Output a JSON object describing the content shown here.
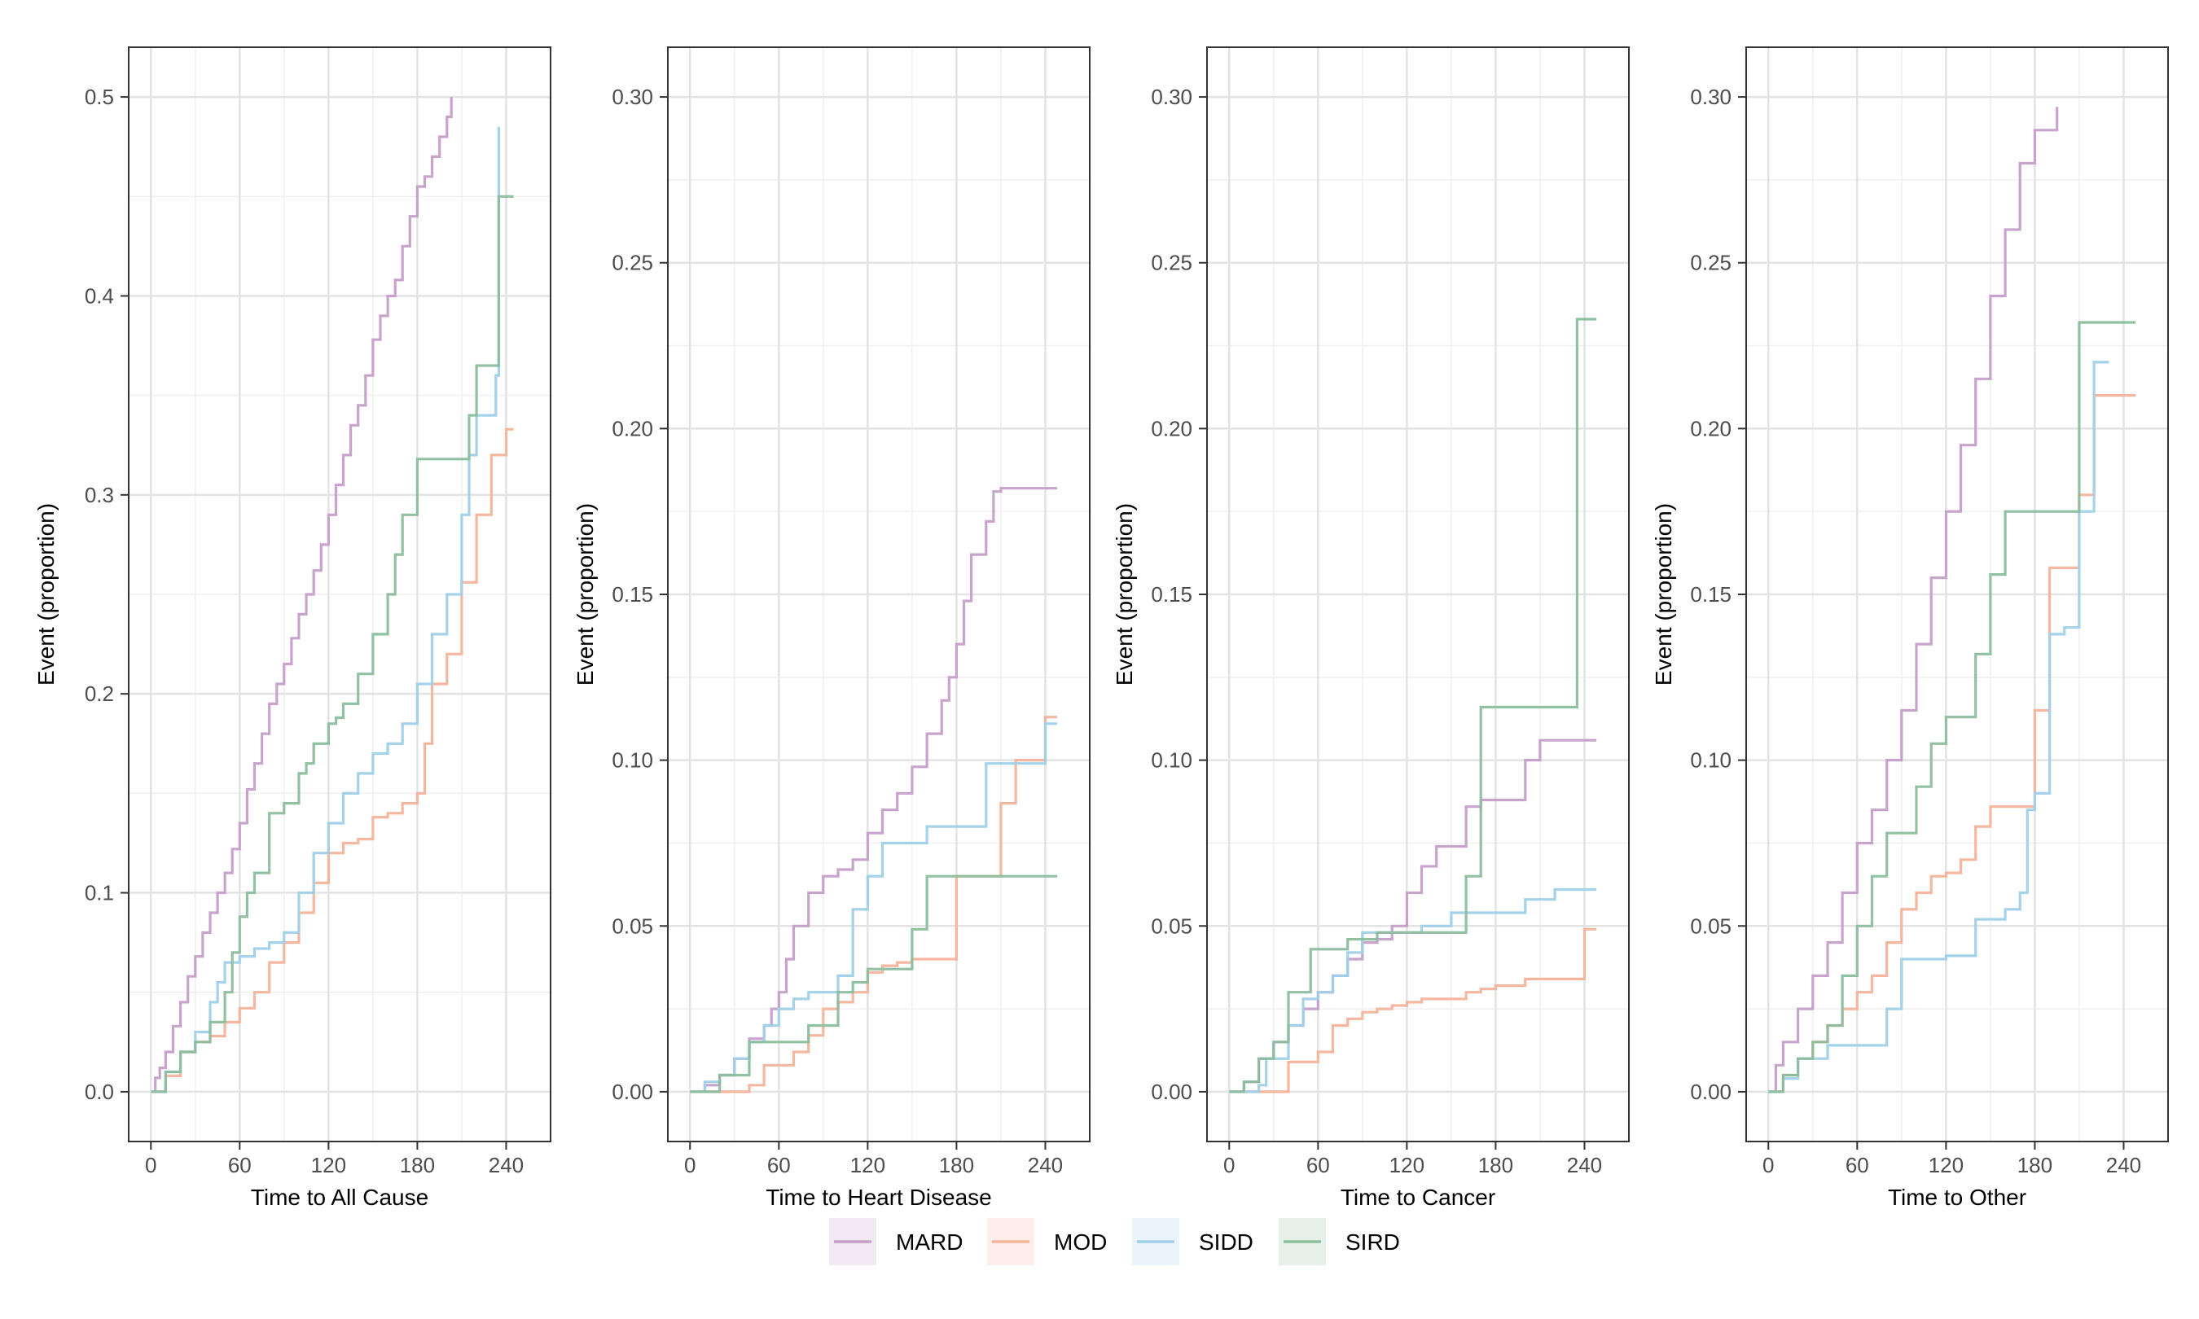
{
  "legend": {
    "items": [
      {
        "name": "MARD",
        "color": "#c59fca"
      },
      {
        "name": "MOD",
        "color": "#f4b39a"
      },
      {
        "name": "SIDD",
        "color": "#9fd0e8"
      },
      {
        "name": "SIRD",
        "color": "#8cbd9d"
      }
    ]
  },
  "chart_data": [
    {
      "type": "line",
      "title": "",
      "xlabel": "Time to All Cause",
      "ylabel": "Event (proportion)",
      "xlim": [
        -15,
        270
      ],
      "ylim": [
        -0.025,
        0.525
      ],
      "xticks": [
        0,
        60,
        120,
        180,
        240
      ],
      "yticks": [
        0.0,
        0.1,
        0.2,
        0.3,
        0.4,
        0.5
      ],
      "ytick_labels": [
        "0.0",
        "0.1",
        "0.2",
        "0.3",
        "0.4",
        "0.5"
      ],
      "series": [
        {
          "name": "MARD",
          "color": "#c59fca",
          "x": [
            0,
            3,
            6,
            10,
            15,
            20,
            25,
            30,
            35,
            40,
            45,
            50,
            55,
            60,
            65,
            70,
            75,
            80,
            85,
            90,
            95,
            100,
            105,
            110,
            115,
            120,
            125,
            130,
            135,
            140,
            145,
            150,
            155,
            160,
            165,
            170,
            175,
            180,
            185,
            190,
            195,
            200,
            203
          ],
          "y": [
            0.0,
            0.007,
            0.012,
            0.02,
            0.033,
            0.045,
            0.058,
            0.068,
            0.08,
            0.09,
            0.1,
            0.11,
            0.122,
            0.135,
            0.152,
            0.165,
            0.18,
            0.195,
            0.205,
            0.215,
            0.228,
            0.24,
            0.25,
            0.262,
            0.275,
            0.29,
            0.305,
            0.32,
            0.335,
            0.345,
            0.36,
            0.378,
            0.39,
            0.4,
            0.408,
            0.425,
            0.44,
            0.455,
            0.46,
            0.47,
            0.48,
            0.49,
            0.5
          ]
        },
        {
          "name": "MOD",
          "color": "#f4b39a",
          "x": [
            0,
            10,
            20,
            30,
            40,
            50,
            60,
            70,
            80,
            90,
            100,
            110,
            120,
            130,
            140,
            150,
            160,
            170,
            180,
            185,
            190,
            200,
            210,
            220,
            230,
            240,
            245
          ],
          "y": [
            0.0,
            0.008,
            0.02,
            0.025,
            0.028,
            0.035,
            0.042,
            0.05,
            0.065,
            0.075,
            0.09,
            0.105,
            0.12,
            0.125,
            0.127,
            0.138,
            0.14,
            0.145,
            0.15,
            0.175,
            0.205,
            0.22,
            0.256,
            0.29,
            0.32,
            0.333,
            0.333
          ]
        },
        {
          "name": "SIDD",
          "color": "#9fd0e8",
          "x": [
            0,
            10,
            20,
            30,
            40,
            45,
            50,
            60,
            70,
            80,
            90,
            100,
            110,
            120,
            130,
            140,
            150,
            160,
            170,
            180,
            190,
            200,
            210,
            215,
            220,
            230,
            233,
            235
          ],
          "y": [
            0.0,
            0.01,
            0.02,
            0.03,
            0.045,
            0.055,
            0.065,
            0.068,
            0.072,
            0.075,
            0.08,
            0.1,
            0.12,
            0.135,
            0.15,
            0.16,
            0.17,
            0.175,
            0.185,
            0.205,
            0.23,
            0.25,
            0.29,
            0.32,
            0.34,
            0.34,
            0.36,
            0.485
          ]
        },
        {
          "name": "SIRD",
          "color": "#8cbd9d",
          "x": [
            0,
            10,
            20,
            30,
            40,
            50,
            55,
            60,
            65,
            70,
            80,
            90,
            100,
            105,
            110,
            120,
            125,
            130,
            140,
            150,
            160,
            165,
            170,
            180,
            190,
            200,
            210,
            215,
            220,
            230,
            235,
            240,
            245
          ],
          "y": [
            0.0,
            0.01,
            0.02,
            0.025,
            0.035,
            0.05,
            0.07,
            0.088,
            0.1,
            0.11,
            0.14,
            0.145,
            0.16,
            0.165,
            0.175,
            0.185,
            0.188,
            0.195,
            0.21,
            0.23,
            0.25,
            0.27,
            0.29,
            0.318,
            0.318,
            0.318,
            0.318,
            0.34,
            0.365,
            0.365,
            0.45,
            0.45,
            0.45
          ]
        }
      ]
    },
    {
      "type": "line",
      "title": "",
      "xlabel": "Time to Heart Disease",
      "ylabel": "Event (proportion)",
      "xlim": [
        -15,
        270
      ],
      "ylim": [
        -0.015,
        0.315
      ],
      "xticks": [
        0,
        60,
        120,
        180,
        240
      ],
      "yticks": [
        0.0,
        0.05,
        0.1,
        0.15,
        0.2,
        0.25,
        0.3
      ],
      "ytick_labels": [
        "0.00",
        "0.05",
        "0.10",
        "0.15",
        "0.20",
        "0.25",
        "0.30"
      ],
      "series": [
        {
          "name": "MARD",
          "color": "#c59fca",
          "x": [
            0,
            10,
            20,
            30,
            40,
            50,
            55,
            60,
            65,
            70,
            80,
            90,
            100,
            110,
            120,
            130,
            140,
            150,
            160,
            170,
            175,
            180,
            185,
            190,
            200,
            205,
            210,
            220,
            230,
            248
          ],
          "y": [
            0.0,
            0.002,
            0.005,
            0.01,
            0.016,
            0.02,
            0.025,
            0.03,
            0.04,
            0.05,
            0.06,
            0.065,
            0.067,
            0.07,
            0.078,
            0.085,
            0.09,
            0.098,
            0.108,
            0.118,
            0.125,
            0.135,
            0.148,
            0.162,
            0.172,
            0.181,
            0.182,
            0.182,
            0.182,
            0.182
          ]
        },
        {
          "name": "MOD",
          "color": "#f4b39a",
          "x": [
            0,
            20,
            40,
            50,
            60,
            70,
            80,
            90,
            100,
            110,
            120,
            130,
            140,
            150,
            160,
            170,
            180,
            190,
            200,
            210,
            220,
            230,
            240,
            248
          ],
          "y": [
            0.0,
            0.0,
            0.002,
            0.008,
            0.008,
            0.012,
            0.017,
            0.025,
            0.027,
            0.03,
            0.036,
            0.038,
            0.039,
            0.04,
            0.04,
            0.04,
            0.065,
            0.065,
            0.065,
            0.087,
            0.1,
            0.1,
            0.113,
            0.113
          ]
        },
        {
          "name": "SIDD",
          "color": "#9fd0e8",
          "x": [
            0,
            10,
            20,
            30,
            40,
            50,
            60,
            70,
            80,
            100,
            110,
            120,
            130,
            150,
            160,
            170,
            180,
            200,
            210,
            220,
            240,
            248
          ],
          "y": [
            0.0,
            0.003,
            0.005,
            0.01,
            0.015,
            0.02,
            0.025,
            0.028,
            0.03,
            0.035,
            0.055,
            0.065,
            0.075,
            0.075,
            0.08,
            0.08,
            0.08,
            0.099,
            0.099,
            0.099,
            0.111,
            0.111
          ]
        },
        {
          "name": "SIRD",
          "color": "#8cbd9d",
          "x": [
            0,
            20,
            40,
            60,
            80,
            100,
            110,
            120,
            130,
            150,
            160,
            180,
            200,
            248
          ],
          "y": [
            0.0,
            0.005,
            0.015,
            0.015,
            0.02,
            0.03,
            0.033,
            0.037,
            0.037,
            0.049,
            0.065,
            0.065,
            0.065,
            0.065
          ]
        }
      ]
    },
    {
      "type": "line",
      "title": "",
      "xlabel": "Time to Cancer",
      "ylabel": "Event (proportion)",
      "xlim": [
        -15,
        270
      ],
      "ylim": [
        -0.015,
        0.315
      ],
      "xticks": [
        0,
        60,
        120,
        180,
        240
      ],
      "yticks": [
        0.0,
        0.05,
        0.1,
        0.15,
        0.2,
        0.25,
        0.3
      ],
      "ytick_labels": [
        "0.00",
        "0.05",
        "0.10",
        "0.15",
        "0.20",
        "0.25",
        "0.30"
      ],
      "series": [
        {
          "name": "MARD",
          "color": "#c59fca",
          "x": [
            0,
            10,
            20,
            30,
            40,
            50,
            60,
            70,
            80,
            90,
            100,
            110,
            120,
            130,
            140,
            150,
            160,
            170,
            180,
            200,
            210,
            220,
            240,
            248
          ],
          "y": [
            0.0,
            0.003,
            0.01,
            0.015,
            0.02,
            0.025,
            0.03,
            0.035,
            0.04,
            0.045,
            0.046,
            0.05,
            0.06,
            0.068,
            0.074,
            0.074,
            0.086,
            0.088,
            0.088,
            0.1,
            0.106,
            0.106,
            0.106,
            0.106
          ]
        },
        {
          "name": "MOD",
          "color": "#f4b39a",
          "x": [
            0,
            10,
            40,
            60,
            70,
            80,
            90,
            100,
            110,
            120,
            130,
            140,
            150,
            160,
            170,
            180,
            200,
            220,
            240,
            248
          ],
          "y": [
            0.0,
            0.0,
            0.009,
            0.012,
            0.02,
            0.022,
            0.024,
            0.025,
            0.026,
            0.027,
            0.028,
            0.028,
            0.028,
            0.03,
            0.031,
            0.032,
            0.034,
            0.034,
            0.049,
            0.049
          ]
        },
        {
          "name": "SIDD",
          "color": "#9fd0e8",
          "x": [
            0,
            10,
            20,
            25,
            40,
            50,
            60,
            70,
            80,
            90,
            120,
            130,
            150,
            160,
            170,
            180,
            200,
            220,
            248
          ],
          "y": [
            0.0,
            0.0,
            0.002,
            0.01,
            0.02,
            0.028,
            0.03,
            0.035,
            0.042,
            0.048,
            0.048,
            0.05,
            0.054,
            0.054,
            0.054,
            0.054,
            0.058,
            0.061,
            0.061
          ]
        },
        {
          "name": "SIRD",
          "color": "#8cbd9d",
          "x": [
            0,
            10,
            20,
            30,
            40,
            55,
            60,
            80,
            100,
            150,
            160,
            170,
            180,
            200,
            220,
            235,
            248
          ],
          "y": [
            0.0,
            0.003,
            0.01,
            0.015,
            0.03,
            0.043,
            0.043,
            0.046,
            0.048,
            0.048,
            0.065,
            0.116,
            0.116,
            0.116,
            0.116,
            0.233,
            0.233
          ]
        }
      ]
    },
    {
      "type": "line",
      "title": "",
      "xlabel": "Time to Other",
      "ylabel": "Event (proportion)",
      "xlim": [
        -15,
        270
      ],
      "ylim": [
        -0.015,
        0.315
      ],
      "xticks": [
        0,
        60,
        120,
        180,
        240
      ],
      "yticks": [
        0.0,
        0.05,
        0.1,
        0.15,
        0.2,
        0.25,
        0.3
      ],
      "ytick_labels": [
        "0.00",
        "0.05",
        "0.10",
        "0.15",
        "0.20",
        "0.25",
        "0.30"
      ],
      "series": [
        {
          "name": "MARD",
          "color": "#c59fca",
          "x": [
            0,
            5,
            10,
            20,
            30,
            40,
            50,
            60,
            70,
            80,
            90,
            100,
            110,
            120,
            130,
            140,
            150,
            160,
            170,
            180,
            190,
            195
          ],
          "y": [
            0.0,
            0.008,
            0.015,
            0.025,
            0.035,
            0.045,
            0.06,
            0.075,
            0.085,
            0.1,
            0.115,
            0.135,
            0.155,
            0.175,
            0.195,
            0.215,
            0.24,
            0.26,
            0.28,
            0.29,
            0.29,
            0.297
          ]
        },
        {
          "name": "MOD",
          "color": "#f4b39a",
          "x": [
            0,
            10,
            20,
            30,
            40,
            50,
            60,
            70,
            80,
            90,
            100,
            110,
            120,
            130,
            140,
            150,
            160,
            170,
            180,
            190,
            200,
            210,
            220,
            248
          ],
          "y": [
            0.0,
            0.005,
            0.01,
            0.015,
            0.02,
            0.025,
            0.03,
            0.035,
            0.045,
            0.055,
            0.06,
            0.065,
            0.066,
            0.07,
            0.08,
            0.086,
            0.086,
            0.086,
            0.115,
            0.158,
            0.158,
            0.18,
            0.21,
            0.21
          ]
        },
        {
          "name": "SIDD",
          "color": "#9fd0e8",
          "x": [
            0,
            10,
            20,
            40,
            60,
            70,
            80,
            90,
            100,
            120,
            140,
            160,
            170,
            175,
            180,
            190,
            200,
            210,
            220,
            230
          ],
          "y": [
            0.0,
            0.004,
            0.01,
            0.014,
            0.014,
            0.014,
            0.025,
            0.04,
            0.04,
            0.041,
            0.052,
            0.055,
            0.06,
            0.085,
            0.09,
            0.138,
            0.14,
            0.175,
            0.22,
            0.22
          ]
        },
        {
          "name": "SIRD",
          "color": "#8cbd9d",
          "x": [
            0,
            10,
            20,
            30,
            40,
            50,
            60,
            70,
            80,
            90,
            100,
            110,
            120,
            130,
            140,
            150,
            160,
            170,
            200,
            210,
            220,
            248
          ],
          "y": [
            0.0,
            0.005,
            0.01,
            0.015,
            0.02,
            0.035,
            0.05,
            0.065,
            0.078,
            0.078,
            0.092,
            0.105,
            0.113,
            0.113,
            0.132,
            0.156,
            0.175,
            0.175,
            0.175,
            0.232,
            0.232,
            0.232
          ]
        }
      ]
    }
  ]
}
